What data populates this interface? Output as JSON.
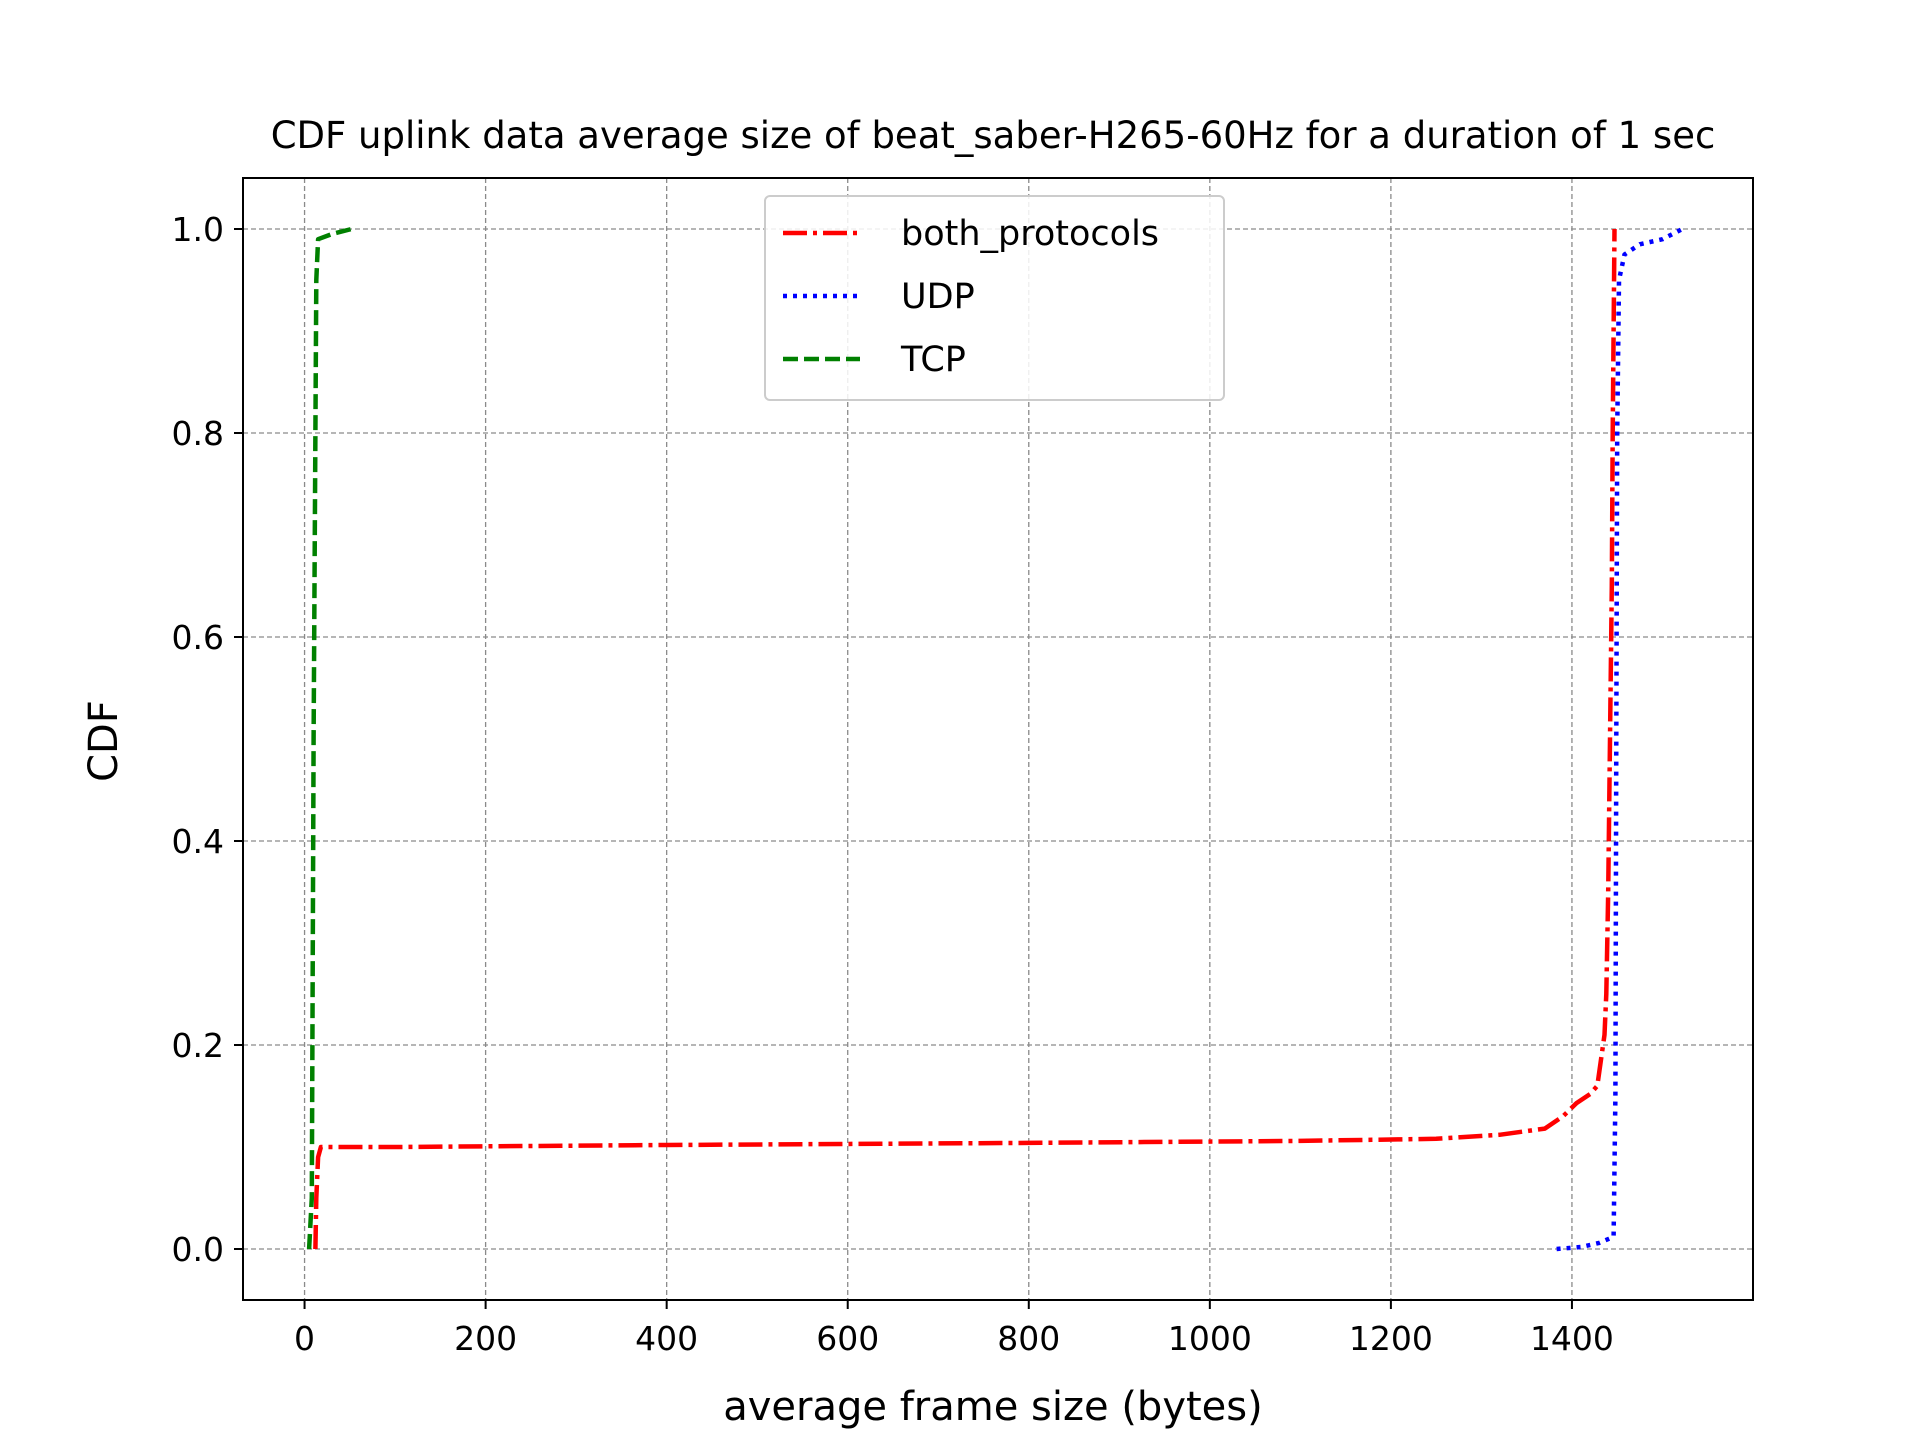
{
  "chart_data": {
    "type": "line",
    "title": "CDF uplink data average size of beat_saber-H265-60Hz for a duration of 1 sec",
    "xlabel": "average frame size (bytes)",
    "ylabel": "CDF",
    "xlim": [
      -68,
      1600
    ],
    "ylim": [
      -0.05,
      1.05
    ],
    "xticks": [
      0,
      200,
      400,
      600,
      800,
      1000,
      1200,
      1400
    ],
    "xtick_labels": [
      "0",
      "200",
      "400",
      "600",
      "800",
      "1000",
      "1200",
      "1400"
    ],
    "yticks": [
      0.0,
      0.2,
      0.4,
      0.6,
      0.8,
      1.0
    ],
    "ytick_labels": [
      "0.0",
      "0.2",
      "0.4",
      "0.6",
      "0.8",
      "1.0"
    ],
    "grid": true,
    "legend_position": "upper center",
    "series": [
      {
        "name": "both_protocols",
        "color": "#ff0000",
        "linestyle": "dashdot",
        "points": [
          [
            12,
            0.0
          ],
          [
            13,
            0.05
          ],
          [
            15,
            0.09
          ],
          [
            18,
            0.1
          ],
          [
            100,
            0.1
          ],
          [
            400,
            0.102
          ],
          [
            800,
            0.104
          ],
          [
            1100,
            0.106
          ],
          [
            1250,
            0.108
          ],
          [
            1320,
            0.112
          ],
          [
            1370,
            0.118
          ],
          [
            1390,
            0.13
          ],
          [
            1405,
            0.143
          ],
          [
            1420,
            0.152
          ],
          [
            1428,
            0.16
          ],
          [
            1432,
            0.185
          ],
          [
            1436,
            0.21
          ],
          [
            1438,
            0.25
          ],
          [
            1440,
            0.35
          ],
          [
            1442,
            0.5
          ],
          [
            1444,
            0.65
          ],
          [
            1445,
            0.8
          ],
          [
            1446,
            0.9
          ],
          [
            1447,
            1.0
          ]
        ]
      },
      {
        "name": "UDP",
        "color": "#0000ff",
        "linestyle": "dotted",
        "points": [
          [
            1383,
            0.0
          ],
          [
            1410,
            0.002
          ],
          [
            1430,
            0.006
          ],
          [
            1446,
            0.012
          ],
          [
            1448,
            0.15
          ],
          [
            1449,
            0.5
          ],
          [
            1450,
            0.8
          ],
          [
            1452,
            0.95
          ],
          [
            1458,
            0.975
          ],
          [
            1475,
            0.985
          ],
          [
            1500,
            0.99
          ],
          [
            1522,
            1.0
          ]
        ]
      },
      {
        "name": "TCP",
        "color": "#008000",
        "linestyle": "dashed",
        "points": [
          [
            5,
            0.0
          ],
          [
            8,
            0.05
          ],
          [
            10,
            0.5
          ],
          [
            13,
            0.95
          ],
          [
            15,
            0.99
          ],
          [
            30,
            0.995
          ],
          [
            52,
            1.0
          ]
        ]
      }
    ]
  }
}
